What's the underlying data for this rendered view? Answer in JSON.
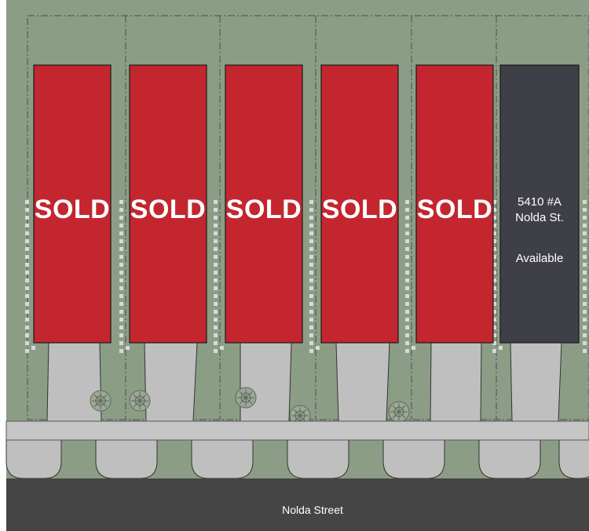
{
  "site_plan": {
    "street_label": "Nolda Street",
    "colors": {
      "grass": "#8c9d86",
      "sold": "#c3262f",
      "available": "#3f3f47",
      "driveway": "#bfbfbf",
      "street": "#454545",
      "sidewalk": "#c6c6c6",
      "paver": "#d9d9d9"
    },
    "lots": [
      {
        "status": "sold",
        "label": "SOLD"
      },
      {
        "status": "sold",
        "label": "SOLD"
      },
      {
        "status": "sold",
        "label": "SOLD"
      },
      {
        "status": "sold",
        "label": "SOLD"
      },
      {
        "status": "sold",
        "label": "SOLD"
      },
      {
        "status": "available",
        "address_line1": "5410 #A",
        "address_line2": "Nolda St.",
        "status_text": "Available"
      }
    ],
    "tree_icons": [
      "tree-icon",
      "tree-icon",
      "tree-icon",
      "tree-icon",
      "tree-icon"
    ]
  }
}
